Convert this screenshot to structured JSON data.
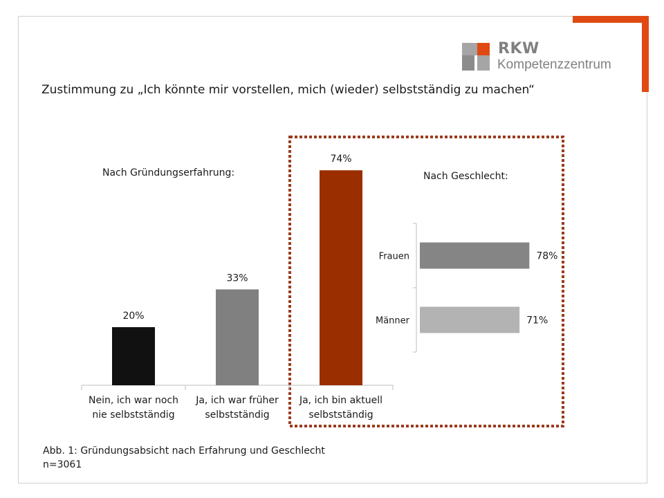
{
  "logo": {
    "main": "RKW",
    "sub": "Kompetenzzentrum"
  },
  "colors": {
    "accent": "#E04A12",
    "highlight_box": "#9A3B1E"
  },
  "caption": {
    "line1": "Abb. 1: Gründungsabsicht nach Erfahrung und Geschlecht",
    "line2": "n=3061"
  },
  "chart_data": [
    {
      "type": "bar",
      "title": "Zustimmung zu „Ich könnte mir vorstellen, mich (wieder) selbstständig zu machen“",
      "subtitle": "Nach Gründungserfahrung:",
      "categories": [
        [
          "Nein, ich war noch",
          "nie selbstständig"
        ],
        [
          "Ja, ich war früher",
          "selbstständig"
        ],
        [
          "Ja, ich bin aktuell",
          "selbstständig"
        ]
      ],
      "values": [
        20,
        33,
        74
      ],
      "value_labels": [
        "20%",
        "33%",
        "74%"
      ],
      "bar_colors": [
        "#111111",
        "#808080",
        "#9A2E00"
      ],
      "ylim": [
        0,
        100
      ],
      "grid": false,
      "highlighted_category": 2
    },
    {
      "type": "bar",
      "orientation": "horizontal",
      "subtitle": "Nach Geschlecht:",
      "categories": [
        "Frauen",
        "Männer"
      ],
      "values": [
        78,
        71
      ],
      "value_labels": [
        "78%",
        "71%"
      ],
      "bar_colors": [
        "#858585",
        "#b3b3b3"
      ],
      "xlim": [
        0,
        100
      ],
      "grid": false
    }
  ]
}
